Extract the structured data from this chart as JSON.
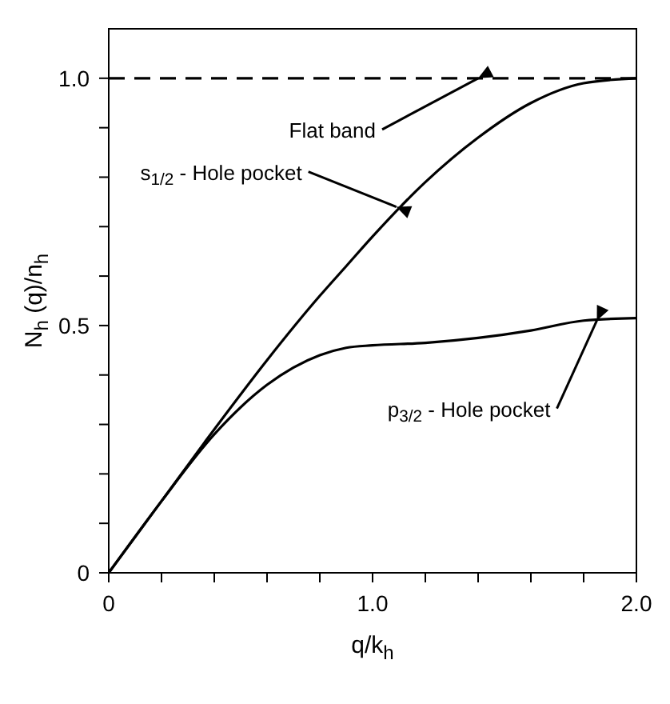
{
  "chart_data": {
    "type": "line",
    "xlabel": "q/k$_{h}$",
    "ylabel": "N$_{h}$ (q)/n$_{h}$",
    "xlim": [
      0,
      2.0
    ],
    "ylim": [
      0,
      1.1
    ],
    "xticks": [
      0,
      {
        "value": 0.2,
        "label": null
      },
      {
        "value": 0.4,
        "label": null
      },
      {
        "value": 0.6,
        "label": null
      },
      {
        "value": 0.8,
        "label": null
      },
      {
        "value": 1.0,
        "label": "1.0"
      },
      {
        "value": 1.2,
        "label": null
      },
      {
        "value": 1.4,
        "label": null
      },
      {
        "value": 1.6,
        "label": null
      },
      {
        "value": 1.8,
        "label": null
      },
      {
        "value": 2.0,
        "label": "2.0"
      }
    ],
    "yticks": [
      0,
      {
        "value": 0.1,
        "label": null
      },
      {
        "value": 0.2,
        "label": null
      },
      {
        "value": 0.3,
        "label": null
      },
      {
        "value": 0.4,
        "label": null
      },
      0.5,
      {
        "value": 0.6,
        "label": null
      },
      {
        "value": 0.7,
        "label": null
      },
      {
        "value": 0.8,
        "label": null
      },
      {
        "value": 0.9,
        "label": null
      },
      {
        "value": 1.0,
        "label": "1.0"
      }
    ],
    "x": [
      0,
      0.2,
      0.4,
      0.6,
      0.8,
      0.9,
      1.0,
      1.2,
      1.4,
      1.6,
      1.8,
      2.0
    ],
    "series": [
      {
        "color": "#000000",
        "line_style": "dashed",
        "values": [
          1.0,
          1.0,
          1.0,
          1.0,
          1.0,
          1.0,
          1.0,
          1.0,
          1.0,
          1.0,
          1.0,
          1.0
        ]
      },
      {
        "color": "#000000",
        "line_style": "solid",
        "values": [
          0,
          0.145,
          0.29,
          0.43,
          0.56,
          0.62,
          0.68,
          0.79,
          0.88,
          0.95,
          0.99,
          1.0
        ]
      },
      {
        "color": "#000000",
        "line_style": "solid",
        "values": [
          0,
          0.145,
          0.28,
          0.38,
          0.44,
          0.455,
          0.46,
          0.465,
          0.475,
          0.49,
          0.51,
          0.515
        ]
      }
    ],
    "annotations": [
      {
        "text": "Flat band",
        "x": 1.4,
        "y": 1.0
      },
      {
        "text": "s$_{1/2}$ - Hole pocket",
        "x": 1.09,
        "y": 0.74
      },
      {
        "text": "p$_{3/2}$ - Hole pocket",
        "x": 1.85,
        "y": 0.51
      }
    ],
    "marker": "none"
  }
}
